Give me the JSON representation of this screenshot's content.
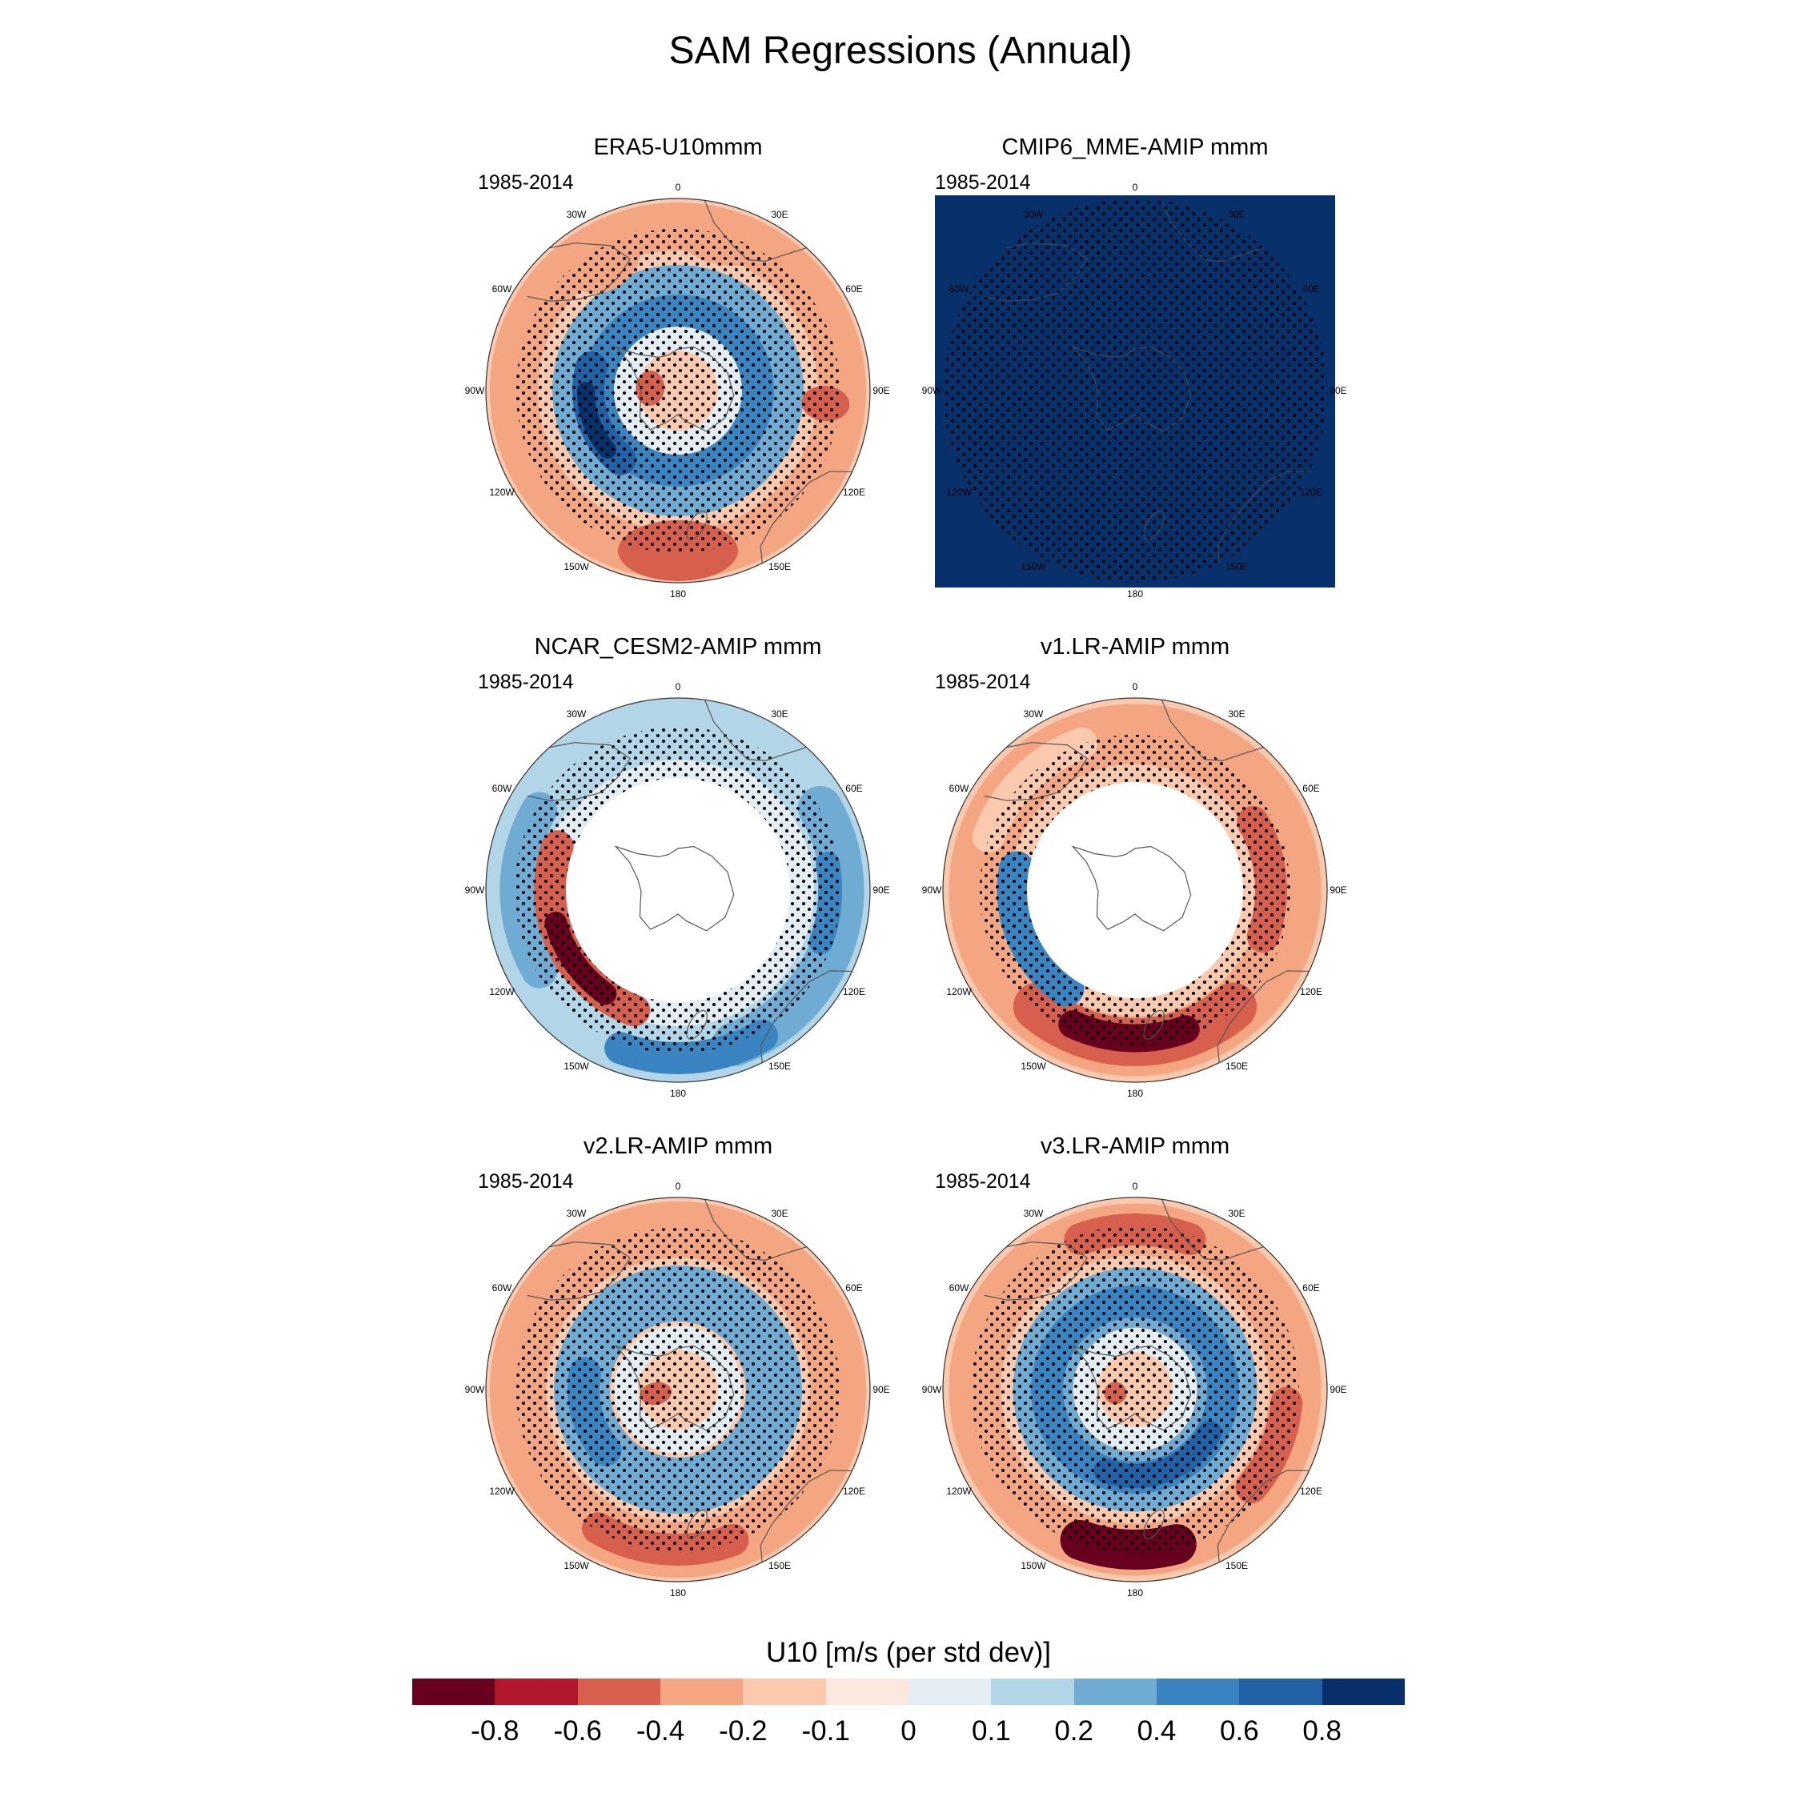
{
  "figure": {
    "title": "SAM Regressions (Annual)"
  },
  "panels": [
    {
      "title": "ERA5-U10mmm",
      "period": "1985-2014",
      "pattern": "era5"
    },
    {
      "title": "CMIP6_MME-AMIP  mmm",
      "period": "1985-2014",
      "pattern": "saturated"
    },
    {
      "title": "NCAR_CESM2-AMIP  mmm",
      "period": "1985-2014",
      "pattern": "cesm2"
    },
    {
      "title": "v1.LR-AMIP  mmm",
      "period": "1985-2014",
      "pattern": "v1"
    },
    {
      "title": "v2.LR-AMIP  mmm",
      "period": "1985-2014",
      "pattern": "v2"
    },
    {
      "title": "v3.LR-AMIP  mmm",
      "period": "1985-2014",
      "pattern": "v3"
    }
  ],
  "map_labels": {
    "longitudes": [
      "0",
      "30E",
      "60E",
      "90E",
      "120E",
      "150E",
      "180",
      "150W",
      "120W",
      "90W",
      "60W",
      "30W"
    ]
  },
  "colorbar": {
    "title": "U10 [m/s (per std dev)]",
    "tick_labels": [
      "-0.8",
      "-0.6",
      "-0.4",
      "-0.2",
      "-0.1",
      "0",
      "0.1",
      "0.2",
      "0.4",
      "0.6",
      "0.8"
    ],
    "colors": [
      "#67001f",
      "#b2182b",
      "#d6604d",
      "#f4a582",
      "#fbc9ae",
      "#fbe8df",
      "#e4edf3",
      "#b3d5e8",
      "#6fabd2",
      "#3a85c1",
      "#2361a6",
      "#08306b"
    ]
  }
}
